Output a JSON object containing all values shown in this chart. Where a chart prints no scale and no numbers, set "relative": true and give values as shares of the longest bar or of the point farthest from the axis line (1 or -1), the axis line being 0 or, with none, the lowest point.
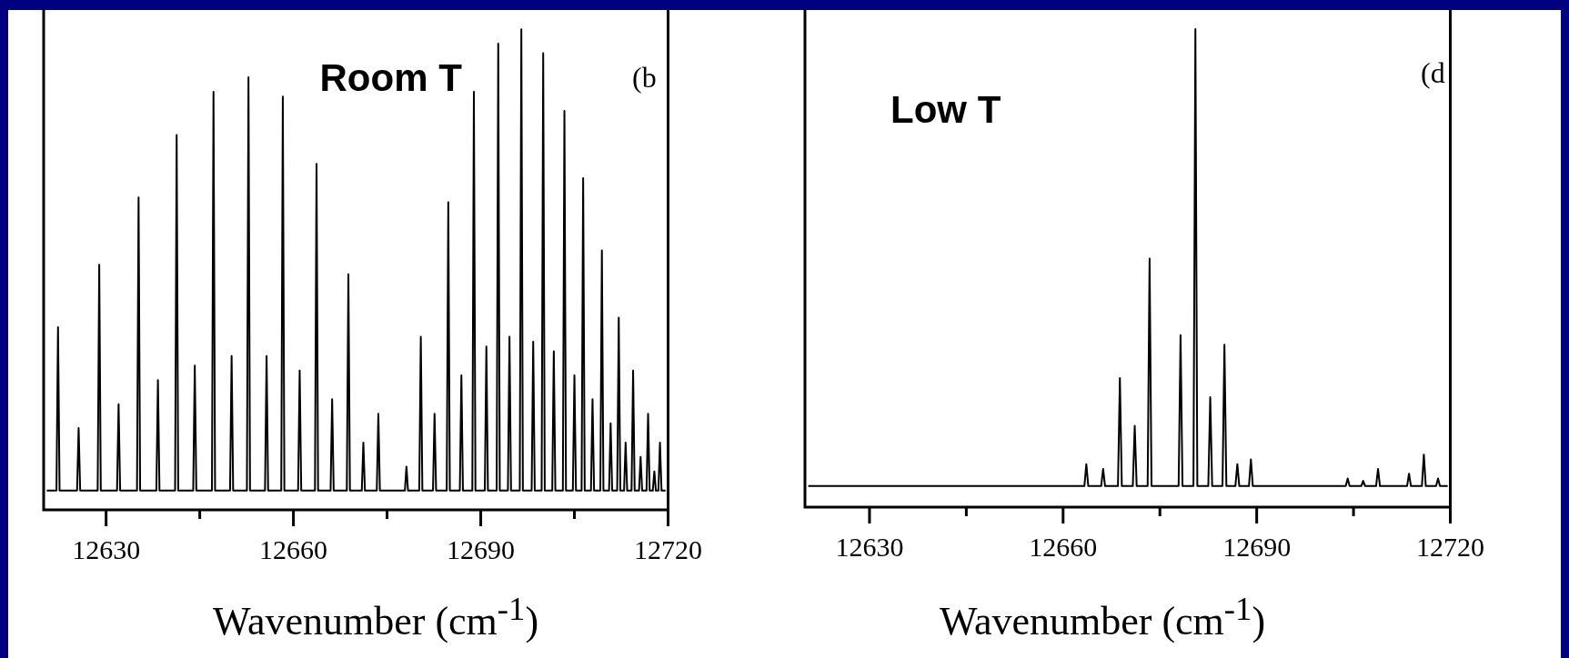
{
  "chart_data": [
    {
      "type": "line",
      "relative": true,
      "xlim": [
        12620,
        12720
      ],
      "xticks": [
        12630,
        {
          "value": 12645,
          "label": null
        },
        12660,
        {
          "value": 12675,
          "label": null
        },
        12690,
        {
          "value": 12705,
          "label": null
        },
        12720
      ],
      "xlabel": "Wavenumber (cm$^{-1}$)",
      "annotations": [
        "Room T",
        "(b"
      ],
      "series": [
        {
          "color": "#000000",
          "x": [
            12620.5,
            12622.05,
            12622.3,
            12622.55,
            12625.35,
            12625.6,
            12625.85,
            12628.65,
            12628.9,
            12629.15,
            12631.75,
            12632.0,
            12632.25,
            12634.95,
            12635.2,
            12635.45,
            12638.05,
            12638.3,
            12638.55,
            12641.05,
            12641.3,
            12641.55,
            12643.95,
            12644.2,
            12644.45,
            12646.95,
            12647.2,
            12647.45,
            12649.85,
            12650.1,
            12650.35,
            12652.55,
            12652.8,
            12653.05,
            12655.45,
            12655.7,
            12655.95,
            12658.05,
            12658.3,
            12658.55,
            12660.75,
            12661.0,
            12661.25,
            12663.45,
            12663.7,
            12663.95,
            12665.95,
            12666.2,
            12666.45,
            12668.55,
            12668.8,
            12669.05,
            12670.95,
            12671.2,
            12671.45,
            12673.35,
            12673.6,
            12673.85,
            12677.85,
            12678.1,
            12678.35,
            12680.15,
            12680.4,
            12680.65,
            12682.35,
            12682.6,
            12682.85,
            12684.55,
            12684.8,
            12685.05,
            12686.65,
            12686.9,
            12687.15,
            12688.65,
            12688.9,
            12689.15,
            12690.65,
            12690.9,
            12691.15,
            12692.55,
            12692.8,
            12693.05,
            12694.35,
            12694.6,
            12694.85,
            12696.25,
            12696.5,
            12696.75,
            12698.15,
            12698.4,
            12698.65,
            12699.75,
            12700.0,
            12700.25,
            12701.45,
            12701.7,
            12701.95,
            12703.15,
            12703.4,
            12703.65,
            12704.75,
            12705.0,
            12705.25,
            12706.15,
            12706.4,
            12706.65,
            12707.65,
            12707.9,
            12708.15,
            12709.15,
            12709.4,
            12709.65,
            12710.55,
            12710.8,
            12711.05,
            12711.85,
            12712.1,
            12712.35,
            12712.95,
            12713.2,
            12713.45,
            12714.15,
            12714.4,
            12714.65,
            12715.35,
            12715.6,
            12715.85,
            12716.55,
            12716.8,
            12717.05,
            12717.55,
            12717.8,
            12718.05,
            12718.45,
            12718.7,
            12718.95,
            12719.6
          ],
          "values": [
            0.04,
            0.04,
            0.38,
            0.04,
            0.04,
            0.17,
            0.04,
            0.04,
            0.51,
            0.04,
            0.04,
            0.22,
            0.04,
            0.04,
            0.65,
            0.04,
            0.04,
            0.27,
            0.04,
            0.04,
            0.78,
            0.04,
            0.04,
            0.3,
            0.04,
            0.04,
            0.87,
            0.04,
            0.04,
            0.32,
            0.04,
            0.04,
            0.9,
            0.04,
            0.04,
            0.32,
            0.04,
            0.04,
            0.86,
            0.04,
            0.04,
            0.29,
            0.04,
            0.04,
            0.72,
            0.04,
            0.04,
            0.23,
            0.04,
            0.04,
            0.49,
            0.04,
            0.04,
            0.14,
            0.04,
            0.04,
            0.2,
            0.04,
            0.04,
            0.09,
            0.04,
            0.04,
            0.36,
            0.04,
            0.04,
            0.2,
            0.04,
            0.04,
            0.64,
            0.04,
            0.04,
            0.28,
            0.04,
            0.04,
            0.87,
            0.04,
            0.04,
            0.34,
            0.04,
            0.04,
            0.97,
            0.04,
            0.04,
            0.36,
            0.04,
            0.04,
            1.0,
            0.04,
            0.04,
            0.35,
            0.04,
            0.04,
            0.95,
            0.04,
            0.04,
            0.33,
            0.04,
            0.04,
            0.83,
            0.04,
            0.04,
            0.28,
            0.04,
            0.04,
            0.69,
            0.04,
            0.04,
            0.23,
            0.04,
            0.04,
            0.54,
            0.04,
            0.04,
            0.18,
            0.04,
            0.04,
            0.4,
            0.04,
            0.04,
            0.14,
            0.04,
            0.04,
            0.29,
            0.04,
            0.04,
            0.11,
            0.04,
            0.04,
            0.2,
            0.04,
            0.04,
            0.08,
            0.04,
            0.04,
            0.14,
            0.04,
            0.04
          ]
        }
      ]
    },
    {
      "type": "line",
      "relative": true,
      "xlim": [
        12620,
        12720
      ],
      "xticks": [
        12630,
        {
          "value": 12645,
          "label": null
        },
        12660,
        {
          "value": 12675,
          "label": null
        },
        12690,
        {
          "value": 12705,
          "label": null
        },
        12720
      ],
      "xlabel": "Wavenumber (cm$^{-1}$)",
      "annotations": [
        "Low T",
        "(d"
      ],
      "series": [
        {
          "color": "#000000",
          "x": [
            12620.5,
            12656.0,
            12663.3,
            12663.6,
            12663.9,
            12665.9,
            12666.2,
            12666.5,
            12668.5,
            12668.8,
            12669.1,
            12670.8,
            12671.1,
            12671.4,
            12673.1,
            12673.4,
            12673.7,
            12677.9,
            12678.2,
            12678.5,
            12680.2,
            12680.5,
            12680.8,
            12682.5,
            12682.8,
            12683.1,
            12684.7,
            12685.0,
            12685.3,
            12686.7,
            12687.0,
            12687.3,
            12688.8,
            12689.1,
            12689.4,
            12703.8,
            12704.1,
            12704.4,
            12706.2,
            12706.5,
            12706.8,
            12708.5,
            12708.8,
            12709.1,
            12713.3,
            12713.6,
            12713.9,
            12715.6,
            12715.9,
            12716.2,
            12717.8,
            12718.1,
            12718.4,
            12719.6
          ],
          "values": [
            0.044,
            0.044,
            0.044,
            0.09,
            0.044,
            0.044,
            0.08,
            0.044,
            0.044,
            0.27,
            0.044,
            0.044,
            0.17,
            0.044,
            0.044,
            0.52,
            0.044,
            0.044,
            0.36,
            0.044,
            0.044,
            1.0,
            0.044,
            0.044,
            0.23,
            0.044,
            0.044,
            0.34,
            0.044,
            0.044,
            0.09,
            0.044,
            0.044,
            0.1,
            0.044,
            0.044,
            0.06,
            0.044,
            0.044,
            0.055,
            0.044,
            0.044,
            0.08,
            0.044,
            0.044,
            0.07,
            0.044,
            0.044,
            0.11,
            0.044,
            0.044,
            0.06,
            0.044,
            0.044
          ]
        }
      ]
    }
  ]
}
